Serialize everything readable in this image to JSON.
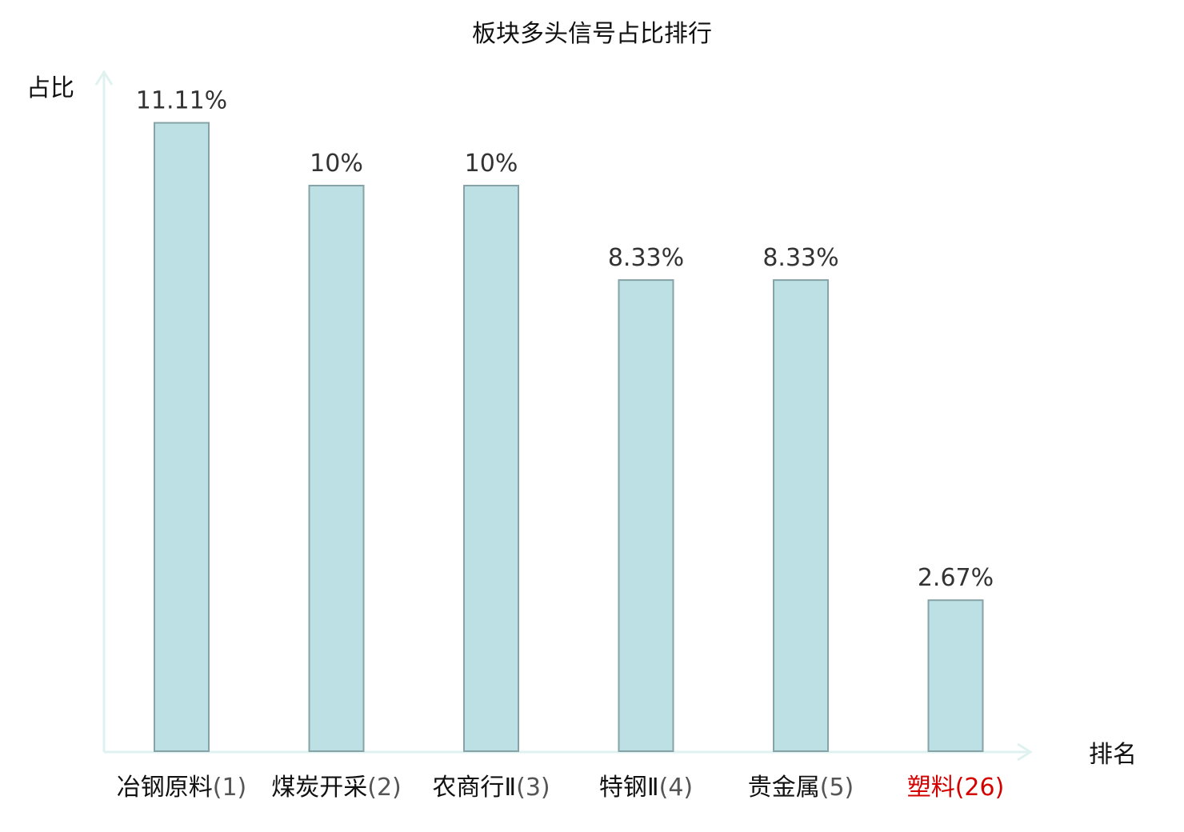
{
  "chart_data": {
    "type": "bar",
    "title": "板块多头信号占比排行",
    "xlabel": "排名",
    "ylabel": "占比",
    "categories": [
      "冶钢原料(1)",
      "煤炭开采(2)",
      "农商行Ⅱ(3)",
      "特钢Ⅱ(4)",
      "贵金属(5)",
      "塑料(26)"
    ],
    "values": [
      11.11,
      10,
      10,
      8.33,
      8.33,
      2.67
    ],
    "value_labels": [
      "11.11%",
      "10%",
      "10%",
      "8.33%",
      "8.33%",
      "2.67%"
    ],
    "highlight_index": 5,
    "ylim": [
      0,
      12
    ],
    "grid": false,
    "colors": {
      "bar_fill": "#bce0e3",
      "bar_stroke": "#86a4a7",
      "axis": "#dff2f0",
      "highlight": "#d40000",
      "label": "#222222"
    }
  }
}
